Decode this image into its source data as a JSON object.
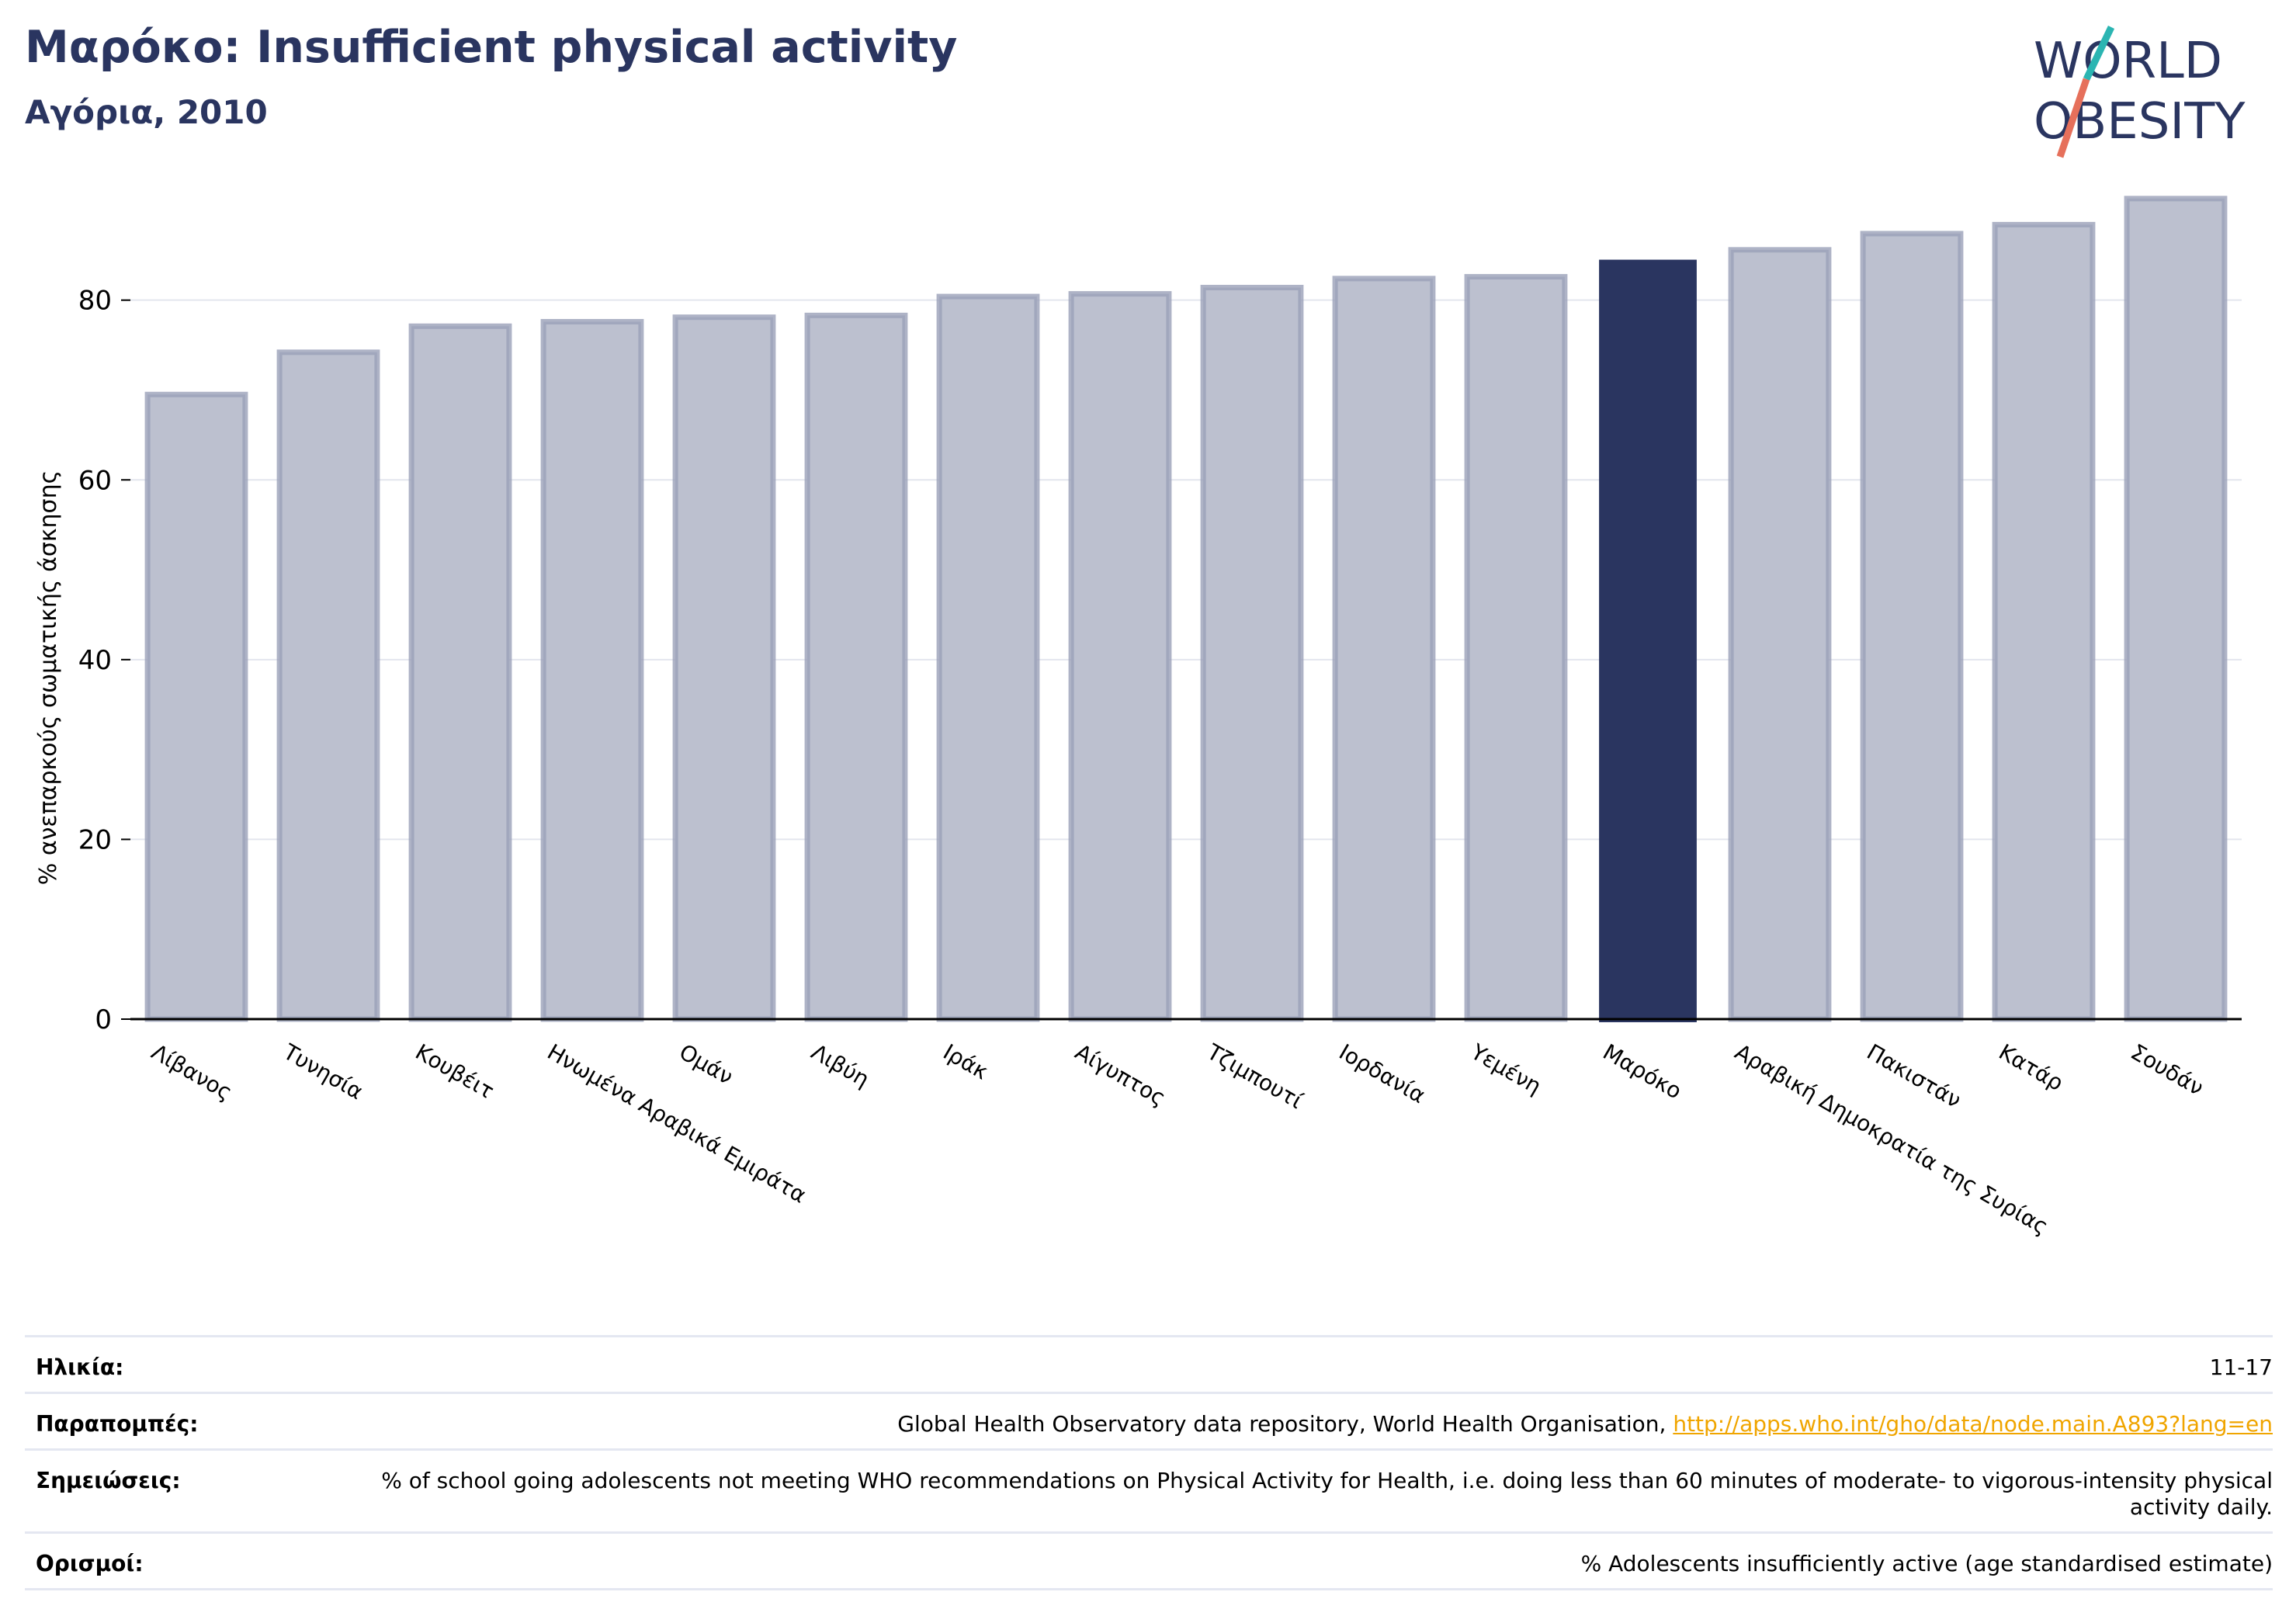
{
  "header": {
    "title": "Μαρόκο: Insufficient physical activity",
    "subtitle": "Αγόρια, 2010"
  },
  "logo": {
    "line1": "WORLD",
    "line2": "OBESITY"
  },
  "chart_data": {
    "type": "bar",
    "ylabel": "% ανεπαρκούς σωματικής άσκησης",
    "xlabel": "",
    "ylim": [
      0,
      95
    ],
    "yticks": [
      0,
      20,
      40,
      60,
      80
    ],
    "grid": true,
    "highlight": "Μαρόκο",
    "colors": {
      "bar": "#bcc0cf",
      "bar_edge": "#9aa0b8",
      "highlight": "#2a3560"
    },
    "categories": [
      "Λίβανος",
      "Τυνησία",
      "Κουβέιτ",
      "Ηνωμένα Αραβικά Εμιράτα",
      "Ομάν",
      "Λιβύη",
      "Ιράκ",
      "Αίγυπτος",
      "Τζιμπουτί",
      "Ιορδανία",
      "Υεμένη",
      "Μαρόκο",
      "Αραβική Δημοκρατία της Συρίας",
      "Πακιστάν",
      "Κατάρ",
      "Σουδάν"
    ],
    "values": [
      69.5,
      74.2,
      77.1,
      77.6,
      78.1,
      78.3,
      80.4,
      80.7,
      81.4,
      82.4,
      82.6,
      84.5,
      85.6,
      87.4,
      88.4,
      91.3
    ]
  },
  "info": {
    "age_label": "Ηλικία:",
    "age_value": "11-17",
    "refs_label": "Παραπομπές:",
    "refs_text": "Global Health Observatory data repository, World Health Organisation, ",
    "refs_link": "http://apps.who.int/gho/data/node.main.A893?lang=en",
    "notes_label": "Σημειώσεις:",
    "notes_value": "% of school going adolescents not meeting WHO recommendations on Physical Activity for Health, i.e. doing less than 60 minutes of moderate- to vigorous-intensity physical activity daily.",
    "defs_label": "Ορισμοί:",
    "defs_value": "% Adolescents insufficiently active (age standardised estimate)"
  }
}
